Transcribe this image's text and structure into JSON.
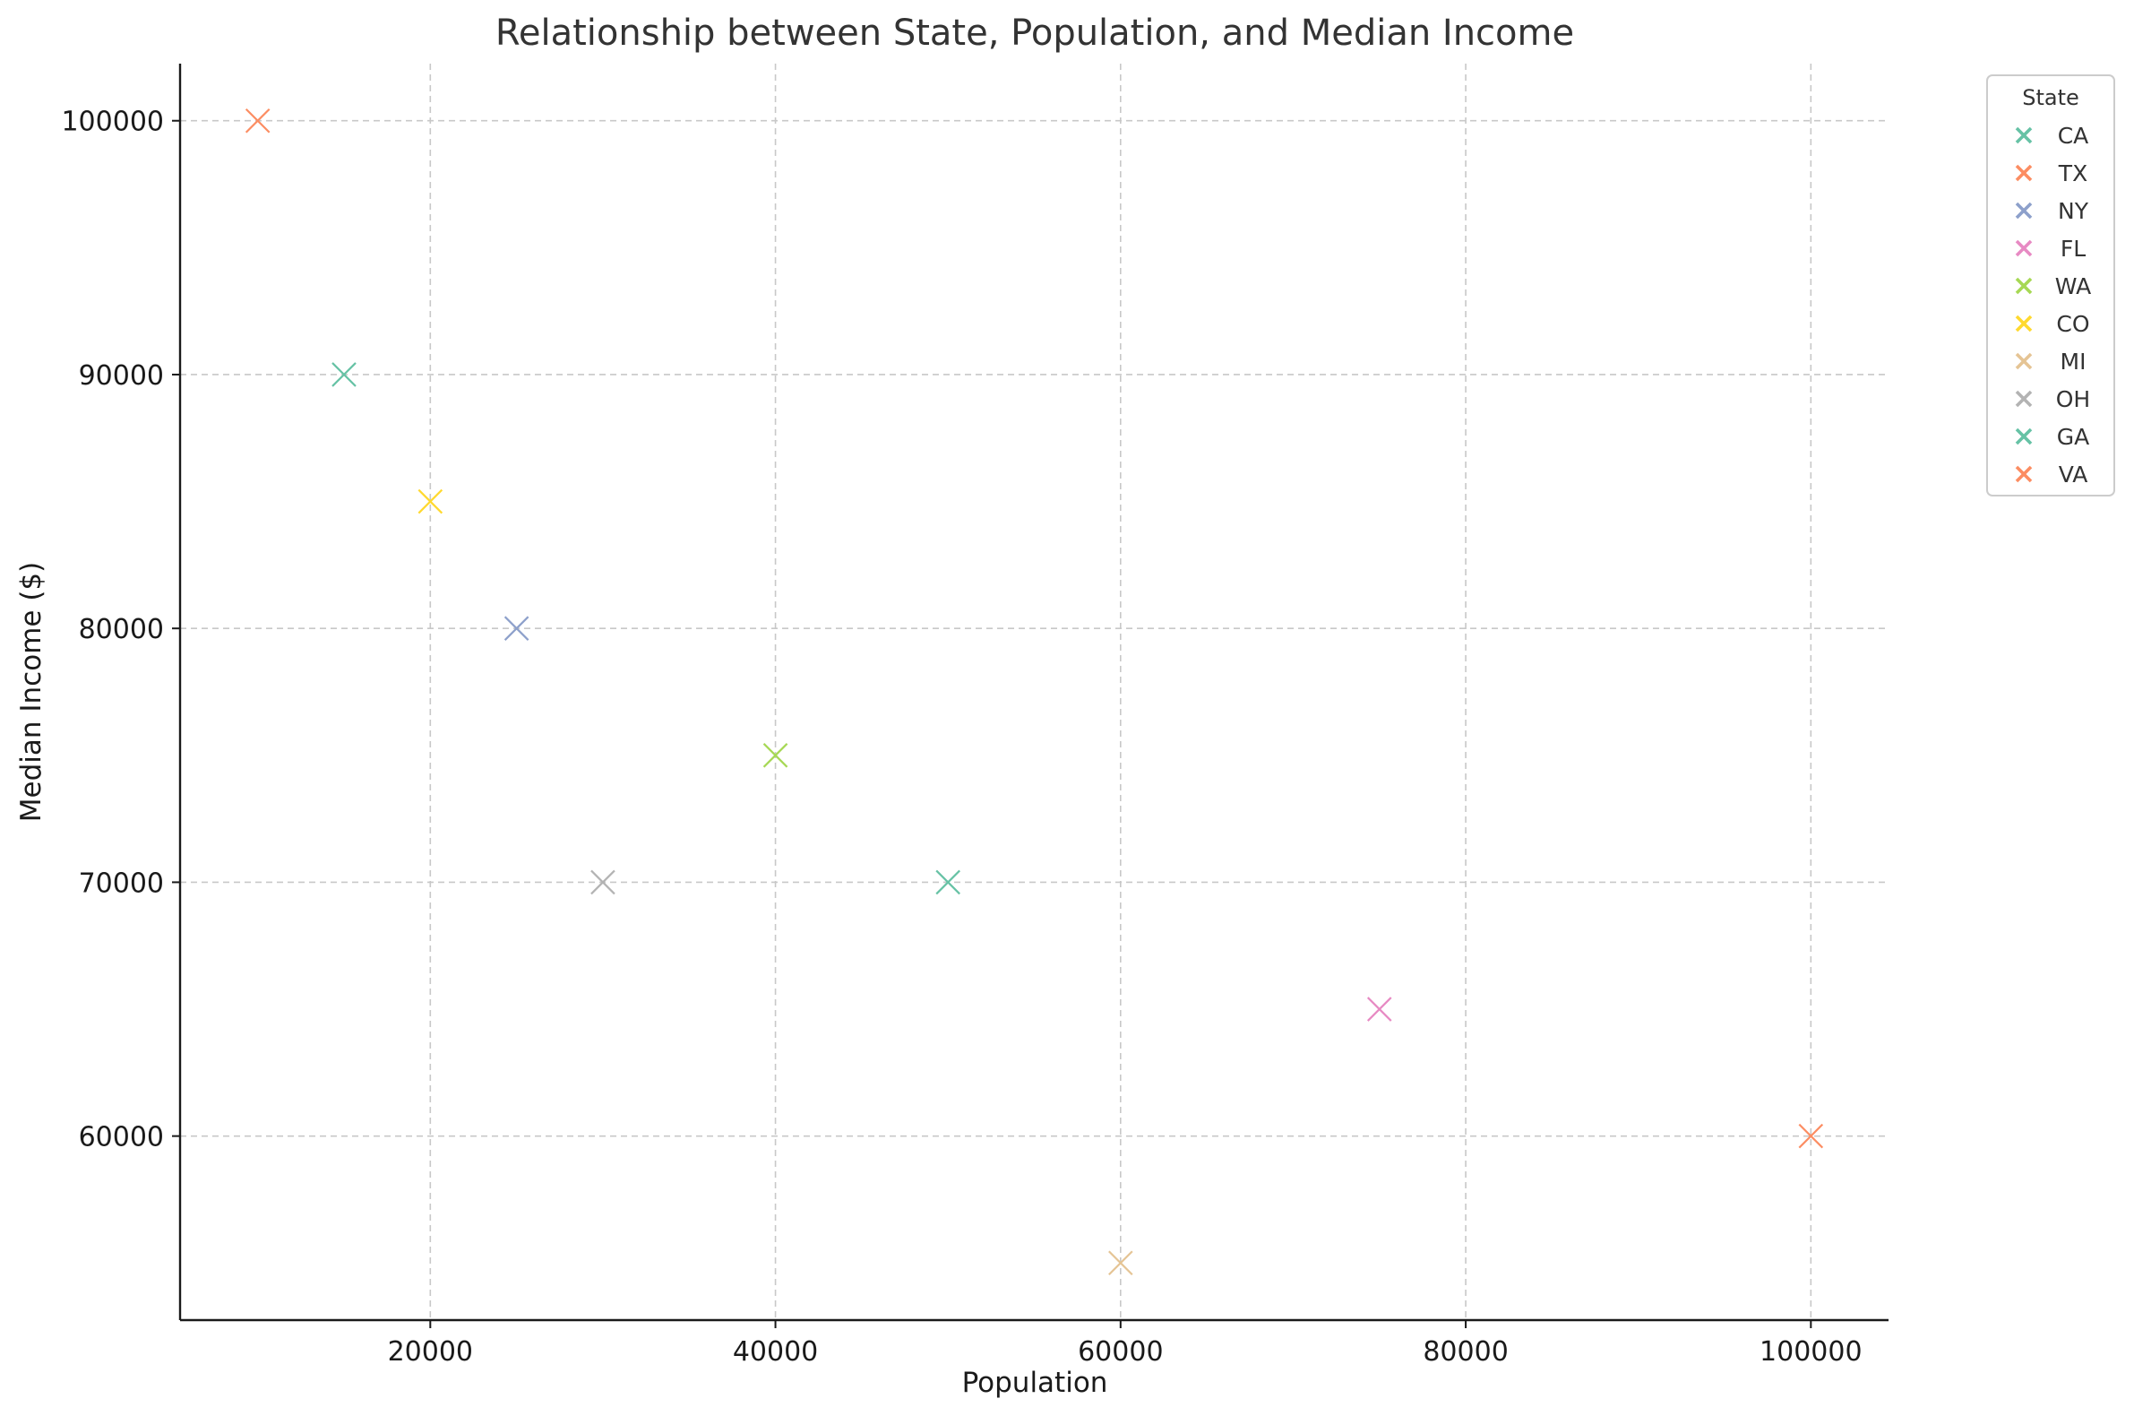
{
  "chart_data": {
    "type": "scatter",
    "title": "Relationship between State, Population, and Median Income",
    "xlabel": "Population",
    "ylabel": "Median Income ($)",
    "xlim": [
      5500,
      104500
    ],
    "ylim": [
      52750,
      102250
    ],
    "xticks": [
      20000,
      40000,
      60000,
      80000,
      100000
    ],
    "yticks": [
      60000,
      70000,
      80000,
      90000,
      100000
    ],
    "grid": true,
    "marker": "x",
    "legend": {
      "title": "State",
      "placement": "outside-top-right"
    },
    "series": [
      {
        "name": "CA",
        "color": "#66c2a5",
        "x": [
          15000
        ],
        "y": [
          90000
        ]
      },
      {
        "name": "TX",
        "color": "#fc8d62",
        "x": [
          10000
        ],
        "y": [
          100000
        ]
      },
      {
        "name": "NY",
        "color": "#8da0cb",
        "x": [
          25000
        ],
        "y": [
          80000
        ]
      },
      {
        "name": "FL",
        "color": "#e78ac3",
        "x": [
          75000
        ],
        "y": [
          65000
        ]
      },
      {
        "name": "WA",
        "color": "#a6d854",
        "x": [
          40000
        ],
        "y": [
          75000
        ]
      },
      {
        "name": "CO",
        "color": "#ffd92f",
        "x": [
          20000
        ],
        "y": [
          85000
        ]
      },
      {
        "name": "MI",
        "color": "#e5c494",
        "x": [
          60000
        ],
        "y": [
          55000
        ]
      },
      {
        "name": "OH",
        "color": "#b3b3b3",
        "x": [
          30000
        ],
        "y": [
          70000
        ]
      },
      {
        "name": "GA",
        "color": "#66c2a5",
        "x": [
          50000
        ],
        "y": [
          70000
        ]
      },
      {
        "name": "VA",
        "color": "#fc8d62",
        "x": [
          100000
        ],
        "y": [
          60000
        ]
      }
    ]
  }
}
